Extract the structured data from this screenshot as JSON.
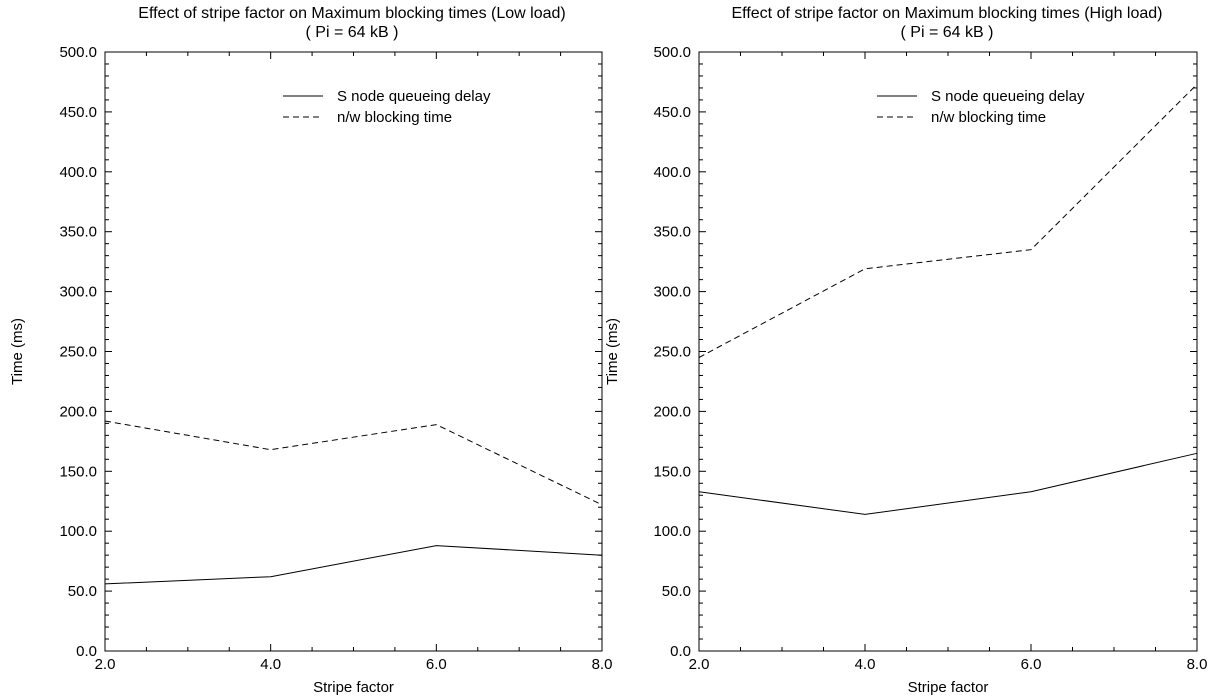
{
  "chart_data": [
    {
      "type": "line",
      "title": "Effect of stripe factor on Maximum blocking times (Low load)",
      "subtitle": "( Pi = 64 kB )",
      "xlabel": "Stripe factor",
      "ylabel": "Time (ms)",
      "xlim": [
        2.0,
        8.0
      ],
      "ylim": [
        0.0,
        500.0
      ],
      "x_ticks": [
        "2.0",
        "4.0",
        "6.0",
        "8.0"
      ],
      "y_ticks": [
        "0.0",
        "50.0",
        "100.0",
        "150.0",
        "200.0",
        "250.0",
        "300.0",
        "350.0",
        "400.0",
        "450.0",
        "500.0"
      ],
      "grid": false,
      "legend_position": "top-right",
      "x": [
        2.0,
        4.0,
        6.0,
        8.0
      ],
      "series": [
        {
          "name": "S node queueing delay",
          "style": "solid",
          "values": [
            56,
            62,
            88,
            80
          ]
        },
        {
          "name": "n/w blocking time",
          "style": "dashed",
          "values": [
            192,
            168,
            189,
            122
          ]
        }
      ]
    },
    {
      "type": "line",
      "title": "Effect of stripe factor on Maximum blocking times (High load)",
      "subtitle": "( Pi = 64 kB )",
      "xlabel": "Stripe factor",
      "ylabel": "Time (ms)",
      "xlim": [
        2.0,
        8.0
      ],
      "ylim": [
        0.0,
        500.0
      ],
      "x_ticks": [
        "2.0",
        "4.0",
        "6.0",
        "8.0"
      ],
      "y_ticks": [
        "0.0",
        "50.0",
        "100.0",
        "150.0",
        "200.0",
        "250.0",
        "300.0",
        "350.0",
        "400.0",
        "450.0",
        "500.0"
      ],
      "grid": false,
      "legend_position": "top-right",
      "x": [
        2.0,
        4.0,
        6.0,
        8.0
      ],
      "series": [
        {
          "name": "S node queueing delay",
          "style": "solid",
          "values": [
            133,
            114,
            133,
            165
          ]
        },
        {
          "name": "n/w blocking time",
          "style": "dashed",
          "values": [
            245,
            319,
            335,
            473
          ]
        }
      ]
    }
  ]
}
